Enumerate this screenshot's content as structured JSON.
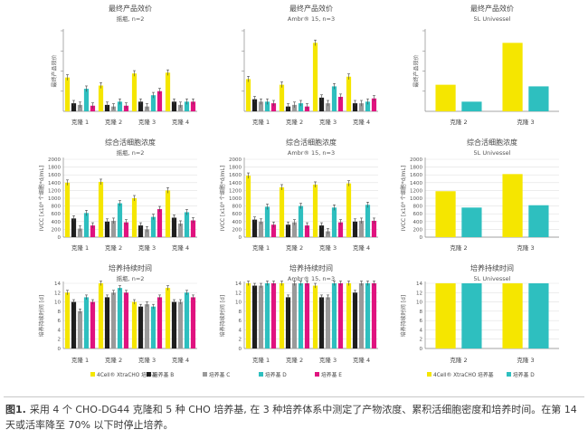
{
  "caption": {
    "label": "图1.",
    "text": "采用 4 个 CHO-DG44 克隆和 5 种 CHO 培养基, 在 3 种培养体系中测定了产物浓度、累积活细胞密度和培养时间。在第 14 天或活率降至 70% 以下时停止培养。"
  },
  "colors": {
    "4Cell XtraCHO 培养基": "#f5e600",
    "培养基 B": "#1e1e1e",
    "培养基 C": "#9a9a9a",
    "培养基 D": "#2ebfbf",
    "培养基 E": "#e0137f"
  },
  "legends": {
    "main": [
      "4Cell® XtraCHO 培养基",
      "培养基 B",
      "培养基 C",
      "培养基 D",
      "培养基 E"
    ],
    "right": [
      "4Cell® XtraCHO 培养基",
      "培养基 D"
    ]
  },
  "chart_data": [
    {
      "type": "bar",
      "title": "最终产品效价",
      "subtitle": "摇瓶, n=2",
      "ylabel": "最终产品效价",
      "yticks": [],
      "ylim": [
        0,
        100
      ],
      "error_bars": true,
      "categories": [
        "克隆 1",
        "克隆 2",
        "克隆 3",
        "克隆 4"
      ],
      "series": [
        {
          "name": "4Cell® XtraCHO 培养基",
          "values": [
            42,
            32,
            47,
            48
          ]
        },
        {
          "name": "培养基 B",
          "values": [
            10,
            8,
            12,
            12
          ]
        },
        {
          "name": "培养基 C",
          "values": [
            8,
            6,
            6,
            8
          ]
        },
        {
          "name": "培养基 D",
          "values": [
            28,
            12,
            20,
            12
          ]
        },
        {
          "name": "培养基 E",
          "values": [
            7,
            7,
            25,
            12
          ]
        }
      ]
    },
    {
      "type": "bar",
      "title": "最终产品效价",
      "subtitle": "Ambr® 15, n=3",
      "ylabel": "",
      "yticks": [],
      "ylim": [
        0,
        100
      ],
      "error_bars": true,
      "categories": [
        "克隆 1",
        "克隆 2",
        "克隆 3",
        "克隆 4"
      ],
      "series": [
        {
          "name": "4Cell® XtraCHO 培养基",
          "values": [
            40,
            33,
            85,
            43
          ]
        },
        {
          "name": "培养基 B",
          "values": [
            15,
            6,
            17,
            10
          ]
        },
        {
          "name": "培养基 C",
          "values": [
            12,
            8,
            10,
            10
          ]
        },
        {
          "name": "培养基 D",
          "values": [
            12,
            10,
            31,
            12
          ]
        },
        {
          "name": "培养基 E",
          "values": [
            10,
            6,
            18,
            16
          ]
        }
      ]
    },
    {
      "type": "bar",
      "title": "最终产品效价",
      "subtitle": "5L Univessel",
      "ylabel": "最终产品效价",
      "yticks": [],
      "ylim": [
        0,
        100
      ],
      "error_bars": false,
      "categories": [
        "克隆 2",
        "克隆 3"
      ],
      "series": [
        {
          "name": "4Cell® XtraCHO 培养基",
          "values": [
            33,
            85
          ]
        },
        {
          "name": "培养基 D",
          "values": [
            12,
            31
          ]
        }
      ]
    },
    {
      "type": "bar",
      "title": "综合活细胞浓度",
      "subtitle": "摇瓶, n=2",
      "ylabel": "IVCC [x10⁶ 个细胞*d/mL]",
      "yticks": [
        "0",
        "200",
        "400",
        "600",
        "800",
        "1000",
        "1200",
        "1400",
        "1600",
        "1800",
        "2000"
      ],
      "ylim": [
        0,
        2000
      ],
      "error_bars": true,
      "categories": [
        "克隆 1",
        "克隆 2",
        "克隆 3",
        "克隆 4"
      ],
      "series": [
        {
          "name": "4Cell® XtraCHO 培养基",
          "values": [
            1400,
            1420,
            1000,
            1200
          ]
        },
        {
          "name": "培养基 B",
          "values": [
            480,
            400,
            300,
            500
          ]
        },
        {
          "name": "培养基 C",
          "values": [
            220,
            420,
            200,
            350
          ]
        },
        {
          "name": "培养基 D",
          "values": [
            620,
            870,
            520,
            640
          ]
        },
        {
          "name": "培养基 E",
          "values": [
            300,
            380,
            720,
            430
          ]
        }
      ]
    },
    {
      "type": "bar",
      "title": "综合活细胞浓度",
      "subtitle": "Ambr® 15, n=3",
      "ylabel": "IVCC [x10⁶ 个细胞*d/mL]",
      "yticks": [
        "0",
        "200",
        "400",
        "600",
        "800",
        "1000",
        "1200",
        "1400",
        "1600",
        "1800",
        "2000"
      ],
      "ylim": [
        0,
        2000
      ],
      "error_bars": true,
      "categories": [
        "克隆 1",
        "克隆 2",
        "克隆 3",
        "克隆 4"
      ],
      "series": [
        {
          "name": "4Cell® XtraCHO 培养基",
          "values": [
            1580,
            1280,
            1350,
            1380
          ]
        },
        {
          "name": "培养基 B",
          "values": [
            450,
            320,
            300,
            400
          ]
        },
        {
          "name": "培养基 C",
          "values": [
            400,
            380,
            150,
            420
          ]
        },
        {
          "name": "培养基 D",
          "values": [
            780,
            800,
            760,
            830
          ]
        },
        {
          "name": "培养基 E",
          "values": [
            320,
            300,
            380,
            420
          ]
        }
      ]
    },
    {
      "type": "bar",
      "title": "综合活细胞浓度",
      "subtitle": "5L Univessel",
      "ylabel": "IVCC [x10⁶ 个细胞*d/mL]",
      "yticks": [
        "0",
        "200",
        "400",
        "600",
        "800",
        "1000",
        "1200",
        "1400",
        "1600",
        "1800",
        "2000"
      ],
      "ylim": [
        0,
        2000
      ],
      "error_bars": false,
      "categories": [
        "克隆 2",
        "克隆 3"
      ],
      "series": [
        {
          "name": "4Cell® XtraCHO 培养基",
          "values": [
            1180,
            1620
          ]
        },
        {
          "name": "培养基 D",
          "values": [
            760,
            820
          ]
        }
      ]
    },
    {
      "type": "bar",
      "title": "培养持续时间",
      "subtitle": "摇瓶, n=2",
      "ylabel": "培养持续时间 [d]",
      "yticks": [
        "0",
        "2",
        "4",
        "6",
        "8",
        "10",
        "12",
        "14"
      ],
      "ylim": [
        0,
        14
      ],
      "error_bars": true,
      "categories": [
        "克隆 1",
        "克隆 2",
        "克隆 3",
        "克隆 4"
      ],
      "series": [
        {
          "name": "4Cell® XtraCHO 培养基",
          "values": [
            12,
            14,
            10,
            13
          ]
        },
        {
          "name": "培养基 B",
          "values": [
            10,
            11,
            9,
            10
          ]
        },
        {
          "name": "培养基 C",
          "values": [
            8,
            12,
            9.5,
            10
          ]
        },
        {
          "name": "培养基 D",
          "values": [
            11,
            13,
            9,
            12
          ]
        },
        {
          "name": "培养基 E",
          "values": [
            10,
            12,
            11,
            11
          ]
        }
      ]
    },
    {
      "type": "bar",
      "title": "培养持续时间",
      "subtitle": "Ambr® 15, n=3",
      "ylabel": "培养持续时间 [d]",
      "yticks": [
        "0",
        "2",
        "4",
        "6",
        "8",
        "10",
        "12",
        "14"
      ],
      "ylim": [
        0,
        14
      ],
      "error_bars": true,
      "categories": [
        "克隆 1",
        "克隆 2",
        "克隆 3",
        "克隆 4"
      ],
      "series": [
        {
          "name": "4Cell® XtraCHO 培养基",
          "values": [
            14,
            14,
            13.5,
            14
          ]
        },
        {
          "name": "培养基 B",
          "values": [
            13.5,
            11,
            11,
            12
          ]
        },
        {
          "name": "培养基 C",
          "values": [
            13.5,
            14,
            11,
            14
          ]
        },
        {
          "name": "培养基 D",
          "values": [
            14,
            14,
            14,
            14
          ]
        },
        {
          "name": "培养基 E",
          "values": [
            14,
            14,
            14,
            14
          ]
        }
      ]
    },
    {
      "type": "bar",
      "title": "培养持续时间",
      "subtitle": "5L Univessel",
      "ylabel": "培养持续时间 [d]",
      "yticks": [
        "0",
        "2",
        "4",
        "6",
        "8",
        "10",
        "12",
        "14"
      ],
      "ylim": [
        0,
        14
      ],
      "error_bars": false,
      "categories": [
        "克隆 2",
        "克隆 3"
      ],
      "series": [
        {
          "name": "4Cell® XtraCHO 培养基",
          "values": [
            14,
            14
          ]
        },
        {
          "name": "培养基 D",
          "values": [
            14,
            14
          ]
        }
      ]
    }
  ]
}
